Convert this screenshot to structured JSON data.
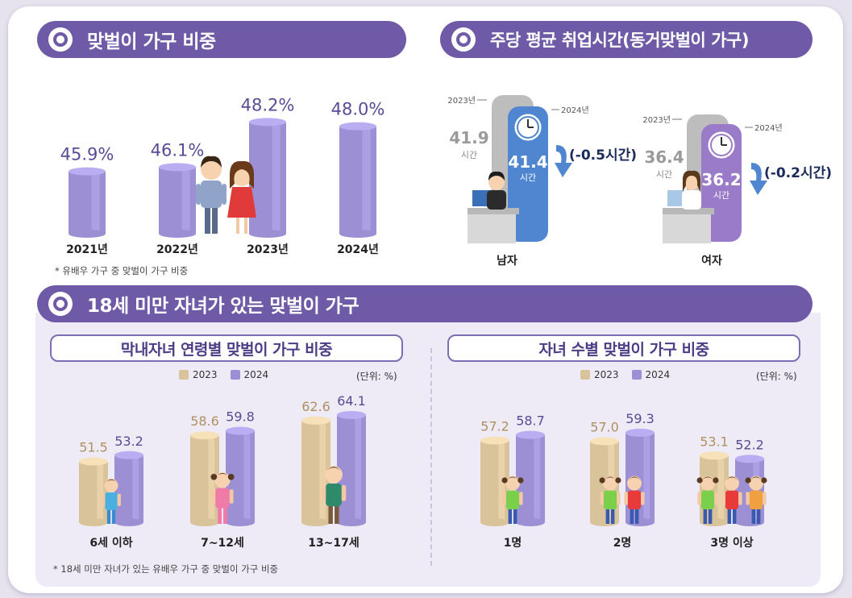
{
  "sections": {
    "dual_income_ratio": {
      "title": "맞벌이 가구 비중",
      "note": "* 유배우 가구 중 맞벌이 가구 비중"
    },
    "weekly_hours": {
      "title": "주당 평균 취업시간(동거맞벌이 가구)"
    },
    "children_under18": {
      "title": "18세 미만 자녀가 있는 맞벌이 가구",
      "note": "* 18세 미만 자녀가 있는 유배우 가구 중 맞벌이 가구 비중"
    }
  },
  "legend_labels": {
    "y2023": "2023",
    "y2024": "2024"
  },
  "unit_label": "(단위: %)",
  "colors": {
    "purple_main": "#6f5aa8",
    "bar_purple": "#9d8fd4",
    "bar_gold": "#d9c39a",
    "text_purple": "#5b4a96",
    "text_gold": "#b09060",
    "blue_panel": "#4f86cf",
    "purple_panel": "#9a7bc9",
    "gray_panel": "#bdbdbd"
  },
  "chart_data": [
    {
      "type": "bar",
      "title": "맞벌이 가구 비중",
      "categories": [
        "2021년",
        "2022년",
        "2023년",
        "2024년"
      ],
      "values": [
        45.9,
        46.1,
        48.2,
        48.0
      ],
      "value_labels": [
        "45.9%",
        "46.1%",
        "48.2%",
        "48.0%"
      ],
      "ylim": [
        43,
        49
      ]
    },
    {
      "type": "bar",
      "title": "주당 평균 취업시간(동거맞벌이 가구)",
      "categories": [
        "남자",
        "여자"
      ],
      "series": [
        {
          "name": "2023년",
          "values": [
            41.9,
            36.4
          ]
        },
        {
          "name": "2024년",
          "values": [
            41.4,
            36.2
          ]
        }
      ],
      "unit_label": "시간",
      "changes": [
        "(-0.5시간)",
        "(-0.2시간)"
      ]
    },
    {
      "type": "bar",
      "title": "막내자녀 연령별 맞벌이 가구 비중",
      "categories": [
        "6세 이하",
        "7~12세",
        "13~17세"
      ],
      "series": [
        {
          "name": "2023",
          "values": [
            51.5,
            58.6,
            62.6
          ]
        },
        {
          "name": "2024",
          "values": [
            53.2,
            59.8,
            64.1
          ]
        }
      ],
      "ylim": [
        35,
        70
      ]
    },
    {
      "type": "bar",
      "title": "자녀 수별 맞벌이 가구 비중",
      "categories": [
        "1명",
        "2명",
        "3명 이상"
      ],
      "series": [
        {
          "name": "2023",
          "values": [
            57.2,
            57.0,
            53.1
          ]
        },
        {
          "name": "2024",
          "values": [
            58.7,
            59.3,
            52.2
          ]
        }
      ],
      "ylim": [
        35,
        70
      ]
    }
  ]
}
